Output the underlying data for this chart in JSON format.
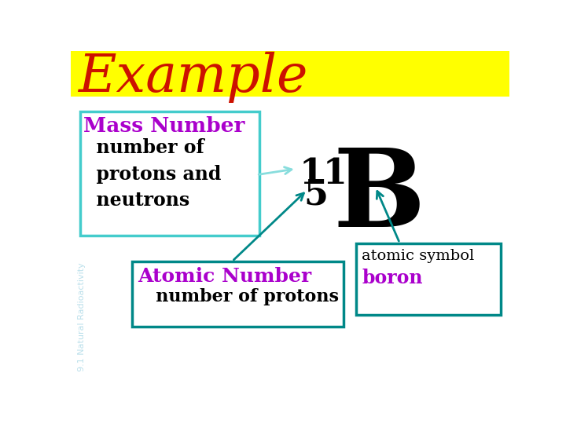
{
  "background_color": "#ffffff",
  "title_bar_color": "#ffff00",
  "title_text": "Example",
  "title_color": "#cc1100",
  "title_fontsize": 48,
  "watermark_text": "9.1 Natural Radioactivity",
  "watermark_color": "#aad8e6",
  "mass_number": "11",
  "atomic_number": "5",
  "element_symbol": "B",
  "mass_fontsize": 32,
  "atomic_fontsize": 32,
  "symbol_fontsize": 100,
  "box1_label": "Mass Number",
  "box1_subtext": "  number of\n  protons and\n  neutrons",
  "box1_label_color": "#aa00cc",
  "box1_text_color": "#000000",
  "box1_border_color": "#44cccc",
  "box2_label": "Atomic Number",
  "box2_subtext": "   number of protons",
  "box2_label_color": "#aa00cc",
  "box2_text_color": "#000000",
  "box2_border_color": "#008888",
  "box3_line1": "atomic symbol",
  "box3_line2": "boron",
  "box3_line1_color": "#000000",
  "box3_line2_color": "#aa00cc",
  "box3_border_color": "#008888",
  "arrow_color_light": "#88dddd",
  "arrow_color_dark": "#008888",
  "number_color": "#000000",
  "symbol_color": "#000000"
}
